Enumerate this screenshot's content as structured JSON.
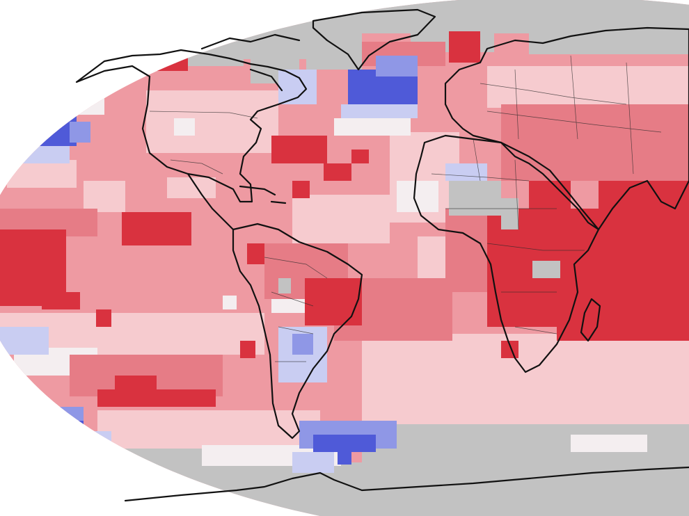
{
  "map": {
    "projection": "robinson-like",
    "colors": {
      "background": "#ffffff",
      "no_data": "#c2c2c2",
      "cool_strong": "#4f5ad8",
      "cool": "#8f97e6",
      "cool_light": "#c9cdf2",
      "neutral": "#f4eef0",
      "warm_light": "#f6cbcf",
      "warm": "#ee9aa2",
      "warm_mid": "#e67c86",
      "warm_strong": "#d9323f",
      "coastline": "#111111"
    },
    "regions": [
      {
        "name": "arctic-no-data",
        "level": "no_data"
      },
      {
        "name": "antarctica-no-data",
        "level": "no_data"
      },
      {
        "name": "sahara-no-data",
        "level": "no_data"
      },
      {
        "name": "north-pacific-cool",
        "level": "cool_strong"
      },
      {
        "name": "north-atlantic-cool",
        "level": "cool_strong"
      },
      {
        "name": "hudson-bay-cool",
        "level": "cool_light"
      },
      {
        "name": "southern-ocean-cool",
        "level": "cool"
      },
      {
        "name": "south-america-interior-cool",
        "level": "cool_light"
      },
      {
        "name": "east-africa-warm",
        "level": "warm_strong"
      },
      {
        "name": "indian-ocean-warm",
        "level": "warm_strong"
      },
      {
        "name": "eastern-pacific-warm",
        "level": "warm_strong"
      },
      {
        "name": "brazil-coast-warm",
        "level": "warm_strong"
      },
      {
        "name": "south-pacific-warm-band",
        "level": "warm_strong"
      },
      {
        "name": "scandinavia-warm",
        "level": "warm_strong"
      }
    ]
  }
}
